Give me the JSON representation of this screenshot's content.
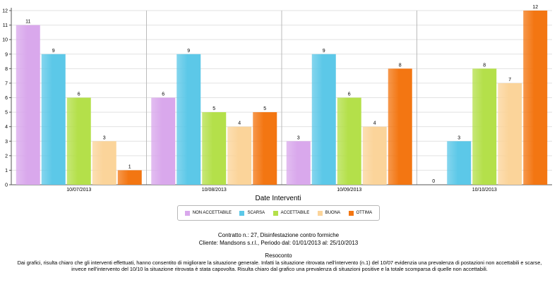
{
  "chart_data": {
    "type": "bar",
    "categories": [
      "10/07/2013",
      "10/08/2013",
      "10/09/2013",
      "10/10/2013"
    ],
    "series": [
      {
        "name": "NON ACCETTABILE",
        "values": [
          11,
          6,
          3,
          0
        ],
        "color": "#d9a8ec"
      },
      {
        "name": "SCARSA",
        "values": [
          9,
          9,
          9,
          3
        ],
        "color": "#5cc8e8"
      },
      {
        "name": "ACCETTABILE",
        "values": [
          6,
          5,
          6,
          8
        ],
        "color": "#b4e04a"
      },
      {
        "name": "BUONA",
        "values": [
          3,
          4,
          4,
          7
        ],
        "color": "#fbd49a"
      },
      {
        "name": "OTTIMA",
        "values": [
          1,
          5,
          8,
          12
        ],
        "color": "#f37612"
      }
    ],
    "xlabel": "Date Interventi",
    "ylabel": "",
    "ylim": [
      0,
      12
    ],
    "yticks": [
      0,
      1,
      2,
      3,
      4,
      5,
      6,
      7,
      8,
      9,
      10,
      11,
      12
    ],
    "grid": true,
    "legend_position": "bottom"
  },
  "footer": {
    "contract_line": "Contratto n.: 27, Disinfestazione contro formiche",
    "client_line": "Cliente: Mandsons s.r.l., Periodo dal: 01/01/2013 al: 25/10/2013",
    "report_title": "Resoconto",
    "report_text": "Dai grafici, risulta chiaro che gli interventi effettuati, hanno consentito di migliorare la situazione generale. Infatti la situazione ritrovata nell'intervento (n.1) del 10/07 evidenzia una prevalenza di postazioni non accettabili e scarse, invece nell'intervento del 10/10 la situazione ritrovata è stata capovolta. Risulta chiaro dal grafico una prevalenza di situazioni positive e la totale scomparsa di quelle non accettabili."
  }
}
